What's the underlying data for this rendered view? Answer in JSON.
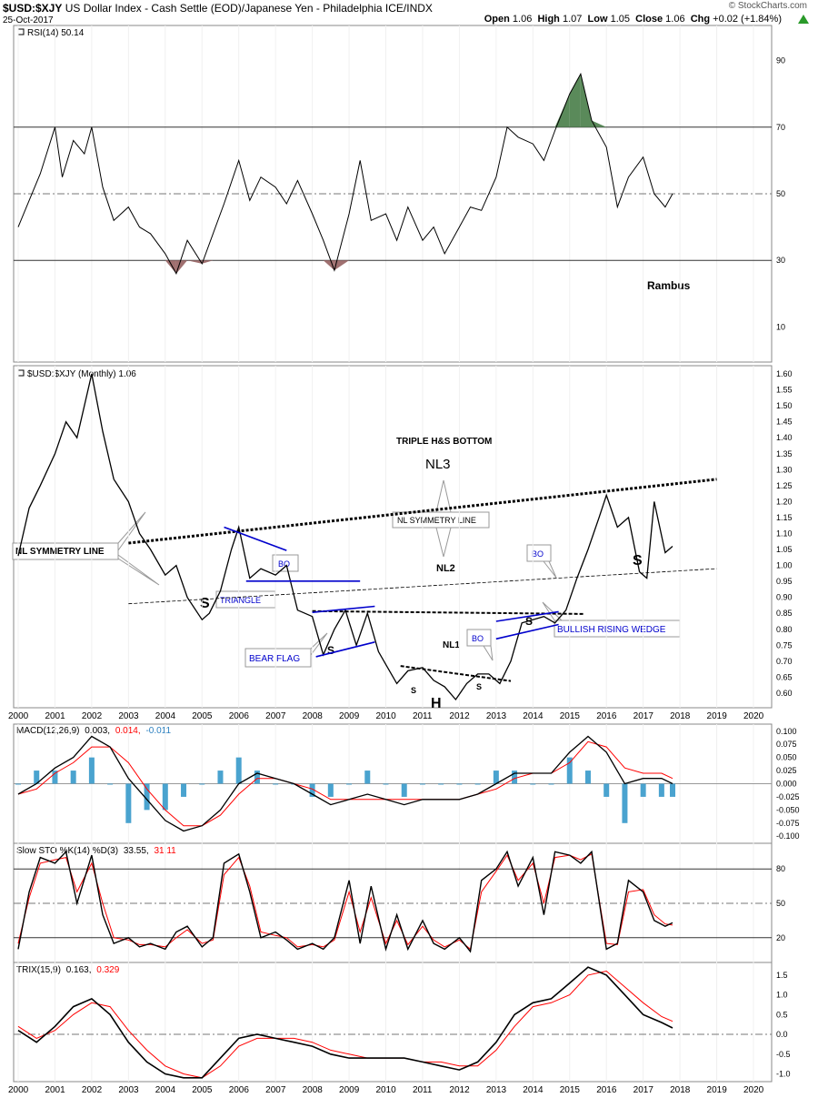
{
  "header": {
    "symbol": "$USD:$XJY",
    "description": "US Dollar Index - Cash Settle (EOD)/Japanese Yen - Philadelphia ICE/INDX",
    "date": "25-Oct-2017",
    "ohlc_label_open": "Open",
    "open": "1.06",
    "ohlc_label_high": "High",
    "high": "1.07",
    "ohlc_label_low": "Low",
    "low": "1.05",
    "ohlc_label_close": "Close",
    "close": "1.06",
    "ohlc_label_chg": "Chg",
    "chg": "+0.02 (+1.84%)",
    "watermark": "© StockCharts.com"
  },
  "colors": {
    "price": "#000000",
    "signal": "#ff0000",
    "hist": "#4aa3cf",
    "trendline": "#0000cc",
    "rsi_over": "#5a8a5a",
    "rsi_under": "#a07070"
  },
  "chart_data": [
    {
      "type": "line",
      "panel": "RSI",
      "legend": "RSI(14) 50.14",
      "y_ticks": [
        "90",
        "70",
        "50",
        "30",
        "10"
      ],
      "ylim": [
        0,
        100
      ],
      "x": [
        2000.0,
        2000.3,
        2000.6,
        2001.0,
        2001.2,
        2001.5,
        2001.8,
        2002.0,
        2002.3,
        2002.6,
        2003.0,
        2003.3,
        2003.6,
        2004.0,
        2004.3,
        2004.6,
        2005.0,
        2005.3,
        2005.6,
        2006.0,
        2006.3,
        2006.6,
        2007.0,
        2007.3,
        2007.6,
        2008.0,
        2008.3,
        2008.6,
        2009.0,
        2009.3,
        2009.6,
        2010.0,
        2010.3,
        2010.6,
        2011.0,
        2011.3,
        2011.6,
        2012.0,
        2012.3,
        2012.6,
        2013.0,
        2013.3,
        2013.6,
        2014.0,
        2014.3,
        2014.6,
        2015.0,
        2015.3,
        2015.6,
        2016.0,
        2016.3,
        2016.6,
        2017.0,
        2017.3,
        2017.6,
        2017.8
      ],
      "y": [
        40,
        48,
        56,
        70,
        55,
        66,
        62,
        70,
        52,
        42,
        46,
        40,
        38,
        32,
        26,
        36,
        29,
        38,
        47,
        60,
        48,
        55,
        52,
        47,
        54,
        44,
        36,
        27,
        44,
        60,
        42,
        44,
        36,
        46,
        36,
        40,
        32,
        40,
        46,
        45,
        55,
        70,
        67,
        65,
        60,
        69,
        80,
        86,
        72,
        64,
        46,
        55,
        61,
        50,
        46,
        50
      ]
    },
    {
      "type": "line",
      "panel": "Price",
      "legend": "$USD:$XJY (Monthly) 1.06",
      "y_ticks": [
        "1.60",
        "1.55",
        "1.50",
        "1.45",
        "1.40",
        "1.35",
        "1.30",
        "1.25",
        "1.20",
        "1.15",
        "1.10",
        "1.05",
        "1.00",
        "0.95",
        "0.90",
        "0.85",
        "0.80",
        "0.75",
        "0.70",
        "0.65",
        "0.60"
      ],
      "ylim": [
        0.56,
        1.62
      ],
      "x": [
        2000.0,
        2000.3,
        2000.6,
        2001.0,
        2001.3,
        2001.6,
        2001.8,
        2002.0,
        2002.3,
        2002.6,
        2003.0,
        2003.3,
        2003.6,
        2004.0,
        2004.3,
        2004.6,
        2005.0,
        2005.2,
        2005.5,
        2005.8,
        2006.0,
        2006.3,
        2006.6,
        2007.0,
        2007.3,
        2007.6,
        2008.0,
        2008.3,
        2008.6,
        2008.9,
        2009.2,
        2009.5,
        2009.8,
        2010.0,
        2010.3,
        2010.6,
        2011.0,
        2011.3,
        2011.6,
        2011.9,
        2012.2,
        2012.5,
        2012.8,
        2013.1,
        2013.4,
        2013.7,
        2014.0,
        2014.3,
        2014.6,
        2014.9,
        2015.2,
        2015.5,
        2015.8,
        2016.0,
        2016.3,
        2016.6,
        2016.9,
        2017.1,
        2017.3,
        2017.6,
        2017.8
      ],
      "y": [
        1.03,
        1.18,
        1.25,
        1.35,
        1.45,
        1.4,
        1.5,
        1.6,
        1.42,
        1.27,
        1.2,
        1.1,
        1.05,
        0.97,
        1.0,
        0.9,
        0.83,
        0.85,
        0.92,
        1.05,
        1.12,
        0.96,
        0.99,
        0.97,
        1.0,
        0.86,
        0.84,
        0.72,
        0.8,
        0.86,
        0.75,
        0.85,
        0.73,
        0.69,
        0.63,
        0.67,
        0.68,
        0.64,
        0.62,
        0.58,
        0.63,
        0.66,
        0.66,
        0.63,
        0.7,
        0.82,
        0.83,
        0.84,
        0.82,
        0.86,
        0.96,
        1.05,
        1.15,
        1.22,
        1.12,
        1.15,
        0.98,
        0.96,
        1.2,
        1.04,
        1.06
      ],
      "annotations": {
        "title": "TRIPLE H&S BOTTOM",
        "nl3": "NL3",
        "nl2": "NL2",
        "nl1": "NL1",
        "nl_symmetry_center": "NL SYMMETRY LINE",
        "nl_symmetry_left": "NL SYMMETRY LINE",
        "triangle": "TRIANGLE",
        "bear_flag": "BEAR FLAG",
        "bullish_wedge": "BULLISH RISING WEDGE",
        "bo": "BO",
        "s": "S",
        "h": "H"
      }
    },
    {
      "type": "line",
      "panel": "MACD",
      "legend_label": "MACD(12,26,9)",
      "legend_v1": "0.003,",
      "legend_v2": "0.014,",
      "legend_v3": "-0.011",
      "y_ticks": [
        "0.100",
        "0.075",
        "0.050",
        "0.025",
        "0.000",
        "-0.025",
        "-0.050",
        "-0.075",
        "-0.100"
      ],
      "ylim": [
        -0.11,
        0.11
      ],
      "x": [
        2000.0,
        2000.5,
        2001.0,
        2001.5,
        2002.0,
        2002.5,
        2003.0,
        2003.5,
        2004.0,
        2004.5,
        2005.0,
        2005.5,
        2006.0,
        2006.5,
        2007.0,
        2007.5,
        2008.0,
        2008.5,
        2009.0,
        2009.5,
        2010.0,
        2010.5,
        2011.0,
        2011.5,
        2012.0,
        2012.5,
        2013.0,
        2013.5,
        2014.0,
        2014.5,
        2015.0,
        2015.5,
        2016.0,
        2016.5,
        2017.0,
        2017.5,
        2017.8
      ],
      "macd": [
        -0.02,
        0.0,
        0.03,
        0.05,
        0.09,
        0.07,
        0.01,
        -0.03,
        -0.07,
        -0.09,
        -0.08,
        -0.05,
        0.0,
        0.02,
        0.01,
        0.0,
        -0.02,
        -0.04,
        -0.03,
        -0.02,
        -0.03,
        -0.04,
        -0.03,
        -0.03,
        -0.03,
        -0.02,
        0.0,
        0.02,
        0.02,
        0.02,
        0.06,
        0.09,
        0.06,
        0.0,
        0.01,
        0.01,
        0.0
      ],
      "signal": [
        -0.02,
        -0.01,
        0.02,
        0.04,
        0.07,
        0.07,
        0.04,
        -0.01,
        -0.05,
        -0.08,
        -0.08,
        -0.06,
        -0.02,
        0.01,
        0.01,
        0.0,
        -0.01,
        -0.03,
        -0.03,
        -0.03,
        -0.03,
        -0.03,
        -0.03,
        -0.03,
        -0.03,
        -0.02,
        -0.01,
        0.01,
        0.02,
        0.02,
        0.04,
        0.08,
        0.07,
        0.03,
        0.02,
        0.02,
        0.01
      ]
    },
    {
      "type": "line",
      "panel": "Slow STO",
      "legend_label": "Slow STO %K(14) %D(3)",
      "legend_v1": "33.55,",
      "legend_v2": "31.11",
      "y_ticks": [
        "80",
        "50",
        "20"
      ],
      "ylim": [
        0,
        100
      ],
      "x": [
        2000.0,
        2000.3,
        2000.6,
        2001.0,
        2001.3,
        2001.6,
        2002.0,
        2002.3,
        2002.6,
        2003.0,
        2003.3,
        2003.6,
        2004.0,
        2004.3,
        2004.6,
        2005.0,
        2005.3,
        2005.6,
        2006.0,
        2006.3,
        2006.6,
        2007.0,
        2007.3,
        2007.6,
        2008.0,
        2008.3,
        2008.6,
        2009.0,
        2009.3,
        2009.6,
        2010.0,
        2010.3,
        2010.6,
        2011.0,
        2011.3,
        2011.6,
        2012.0,
        2012.3,
        2012.6,
        2013.0,
        2013.3,
        2013.6,
        2014.0,
        2014.3,
        2014.6,
        2015.0,
        2015.3,
        2015.6,
        2016.0,
        2016.3,
        2016.6,
        2017.0,
        2017.3,
        2017.6,
        2017.8
      ],
      "k": [
        10,
        60,
        90,
        85,
        95,
        50,
        92,
        40,
        15,
        20,
        12,
        15,
        10,
        25,
        30,
        12,
        20,
        85,
        93,
        60,
        20,
        25,
        18,
        10,
        15,
        10,
        20,
        70,
        15,
        65,
        10,
        40,
        10,
        35,
        15,
        10,
        20,
        8,
        70,
        80,
        95,
        65,
        90,
        40,
        95,
        92,
        85,
        95,
        10,
        15,
        70,
        60,
        35,
        30,
        33
      ],
      "d": [
        15,
        55,
        85,
        88,
        90,
        60,
        85,
        50,
        20,
        18,
        14,
        14,
        12,
        20,
        27,
        15,
        18,
        75,
        90,
        65,
        25,
        22,
        20,
        12,
        14,
        12,
        18,
        60,
        25,
        55,
        15,
        35,
        14,
        30,
        18,
        12,
        18,
        10,
        60,
        78,
        92,
        70,
        85,
        50,
        90,
        92,
        88,
        93,
        15,
        14,
        60,
        62,
        40,
        32,
        31
      ]
    },
    {
      "type": "line",
      "panel": "TRIX",
      "legend_label": "TRIX(15,9)",
      "legend_v1": "0.163,",
      "legend_v2": "0.329",
      "y_ticks": [
        "1.5",
        "1.0",
        "0.5",
        "0.0",
        "-0.5",
        "-1.0"
      ],
      "ylim": [
        -1.15,
        1.75
      ],
      "x": [
        2000.0,
        2000.5,
        2001.0,
        2001.5,
        2002.0,
        2002.5,
        2003.0,
        2003.5,
        2004.0,
        2004.5,
        2005.0,
        2005.5,
        2006.0,
        2006.5,
        2007.0,
        2007.5,
        2008.0,
        2008.5,
        2009.0,
        2009.5,
        2010.0,
        2010.5,
        2011.0,
        2011.5,
        2012.0,
        2012.5,
        2013.0,
        2013.5,
        2014.0,
        2014.5,
        2015.0,
        2015.5,
        2016.0,
        2016.5,
        2017.0,
        2017.5,
        2017.8
      ],
      "trix": [
        0.1,
        -0.2,
        0.2,
        0.7,
        0.9,
        0.5,
        -0.2,
        -0.7,
        -1.0,
        -1.1,
        -1.1,
        -0.6,
        -0.1,
        0.0,
        -0.1,
        -0.2,
        -0.3,
        -0.5,
        -0.6,
        -0.6,
        -0.6,
        -0.6,
        -0.7,
        -0.8,
        -0.9,
        -0.7,
        -0.2,
        0.5,
        0.8,
        0.9,
        1.3,
        1.7,
        1.5,
        1.0,
        0.5,
        0.3,
        0.163
      ],
      "signal": [
        0.2,
        -0.1,
        0.1,
        0.5,
        0.8,
        0.7,
        0.1,
        -0.4,
        -0.8,
        -1.0,
        -1.1,
        -0.8,
        -0.3,
        -0.1,
        -0.1,
        -0.1,
        -0.2,
        -0.4,
        -0.5,
        -0.6,
        -0.6,
        -0.6,
        -0.7,
        -0.7,
        -0.8,
        -0.8,
        -0.4,
        0.2,
        0.7,
        0.8,
        1.0,
        1.5,
        1.6,
        1.2,
        0.8,
        0.45,
        0.329
      ]
    }
  ],
  "x_axis_years": [
    "2000",
    "2001",
    "2002",
    "2003",
    "2004",
    "2005",
    "2006",
    "2007",
    "2008",
    "2009",
    "2010",
    "2011",
    "2012",
    "2013",
    "2014",
    "2015",
    "2016",
    "2017",
    "2018",
    "2019",
    "2020"
  ],
  "author": "Rambus"
}
